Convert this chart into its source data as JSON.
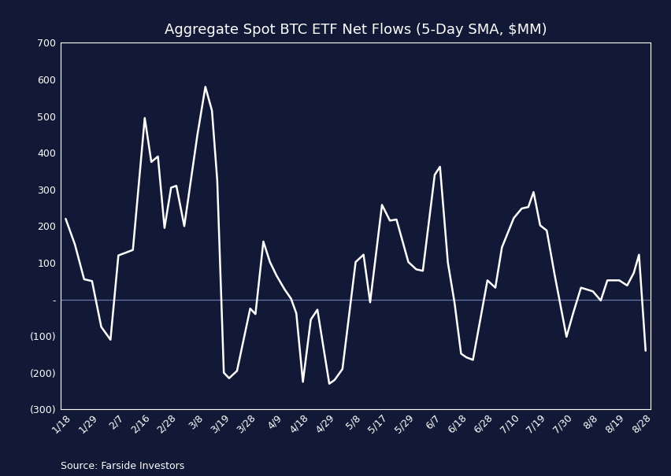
{
  "title": "Aggregate Spot BTC ETF Net Flows (5-Day SMA, $MM)",
  "source_text": "Source: Farside Investors",
  "background_color": "#111936",
  "plot_bg_color": "#111936",
  "line_color": "#ffffff",
  "zero_line_color": "#6677aa",
  "spine_color": "#ffffff",
  "ylim": [
    -300,
    700
  ],
  "yticks": [
    -300,
    -200,
    -100,
    0,
    100,
    200,
    300,
    400,
    500,
    600,
    700
  ],
  "ytick_labels": [
    "(300)",
    "(200)",
    "(100)",
    "-",
    "100",
    "200",
    "300",
    "400",
    "500",
    "600",
    "700"
  ],
  "x_labels": [
    "1/18",
    "1/29",
    "2/7",
    "2/16",
    "2/28",
    "3/8",
    "3/19",
    "3/28",
    "4/9",
    "4/18",
    "4/29",
    "5/8",
    "5/17",
    "5/29",
    "6/7",
    "6/18",
    "6/28",
    "7/10",
    "7/19",
    "7/30",
    "8/8",
    "8/19",
    "8/28"
  ],
  "title_fontsize": 13,
  "tick_fontsize": 9,
  "source_fontsize": 9,
  "line_x": [
    0,
    0.35,
    0.7,
    1.0,
    1.35,
    1.7,
    2.0,
    2.3,
    2.55,
    3.0,
    3.25,
    3.5,
    3.75,
    4.0,
    4.2,
    4.5,
    5.0,
    5.3,
    5.55,
    5.75,
    6.0,
    6.2,
    6.5,
    7.0,
    7.2,
    7.5,
    7.75,
    8.0,
    8.3,
    8.55,
    8.75,
    9.0,
    9.3,
    9.55,
    10.0,
    10.2,
    10.5,
    11.0,
    11.3,
    11.55,
    12.0,
    12.3,
    12.55,
    13.0,
    13.3,
    13.55,
    14.0,
    14.2,
    14.5,
    14.75,
    15.0,
    15.2,
    15.45,
    16.0,
    16.3,
    16.55,
    17.0,
    17.3,
    17.55,
    17.75,
    18.0,
    18.25,
    18.55,
    19.0,
    19.25,
    19.55,
    20.0,
    20.3,
    20.55,
    21.0,
    21.3,
    21.55,
    21.75,
    22.0
  ],
  "line_y": [
    220,
    150,
    55,
    50,
    -75,
    -110,
    120,
    128,
    135,
    495,
    375,
    390,
    195,
    305,
    310,
    200,
    450,
    580,
    515,
    325,
    -200,
    -215,
    -195,
    -25,
    -40,
    158,
    102,
    65,
    28,
    2,
    -38,
    -225,
    -55,
    -28,
    -230,
    -220,
    -190,
    102,
    122,
    -8,
    258,
    215,
    218,
    102,
    82,
    78,
    340,
    362,
    100,
    -8,
    -148,
    -158,
    -165,
    52,
    32,
    142,
    222,
    248,
    252,
    293,
    202,
    188,
    67,
    -102,
    -38,
    32,
    22,
    -3,
    52,
    52,
    38,
    72,
    122,
    -140
  ]
}
